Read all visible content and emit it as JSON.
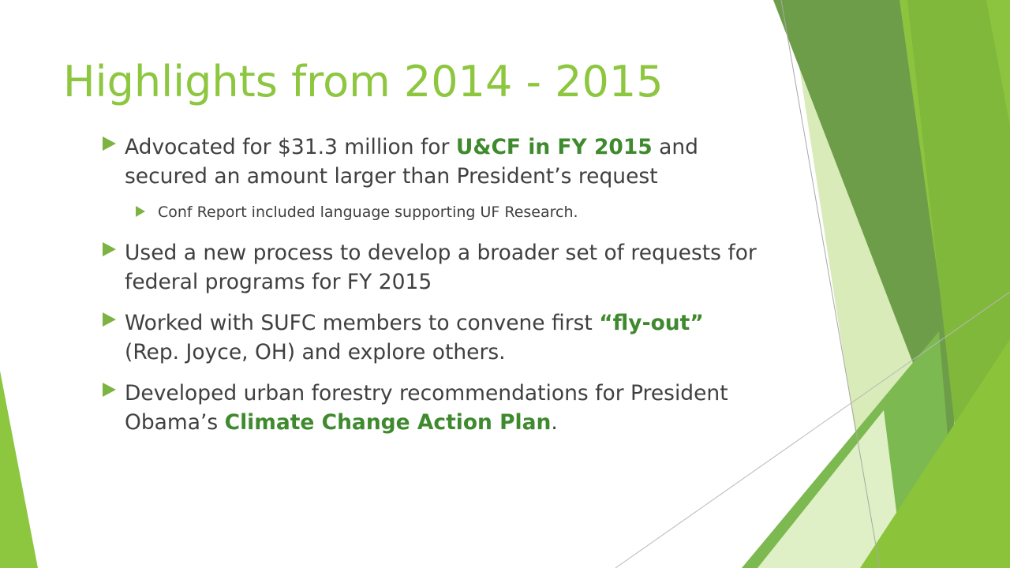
{
  "slide": {
    "title": "Highlights from 2014 - 2015",
    "bullets": [
      {
        "prefix": "Advocated for $31.3 million for ",
        "highlight": "U&CF in FY 2015",
        "suffix": " and secured an amount larger than President’s request",
        "sub": "Conf Report included language supporting UF Research."
      },
      {
        "text": "Used a new process to develop a broader set of requests for federal programs for FY 2015"
      },
      {
        "prefix": "Worked with SUFC members to convene first ",
        "highlight": "“fly-out”",
        "suffix": " (Rep. Joyce, OH) and explore others."
      },
      {
        "prefix": "Developed urban forestry recommendations for President Obama’s ",
        "highlight": "Climate Change Action Plan",
        "suffix": "."
      }
    ]
  },
  "theme": {
    "title_color": "#8DC63F",
    "text_color": "#404040",
    "highlight_color": "#3F8A2E",
    "bullet_icon": "triangle-arrow-icon"
  }
}
